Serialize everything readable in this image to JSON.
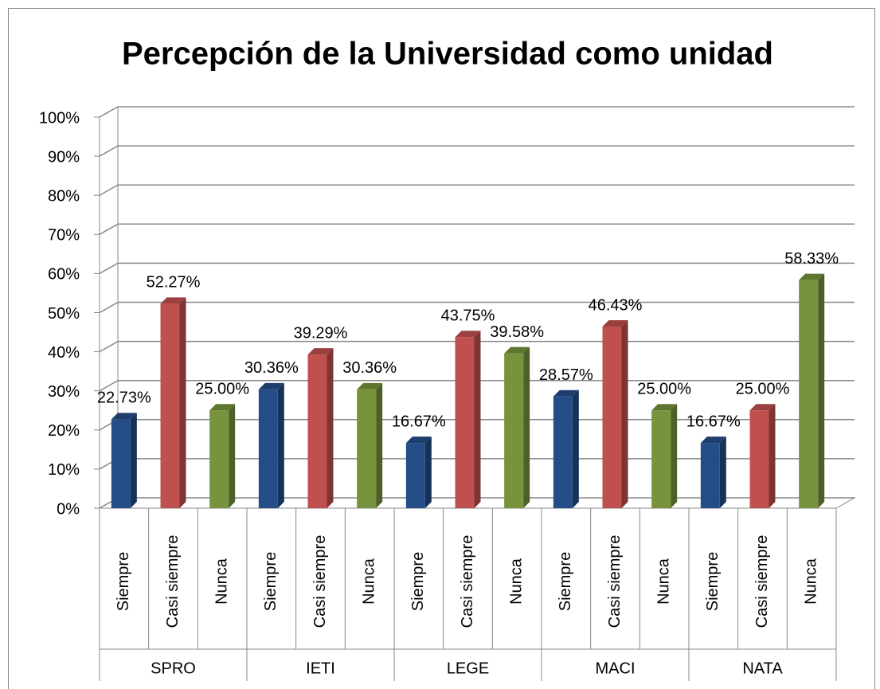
{
  "chart_data": {
    "type": "bar3d",
    "title": "Percepción de la Universidad como unidad",
    "categories": [
      "SPRO",
      "IETI",
      "LEGE",
      "MACI",
      "NATA"
    ],
    "series": [
      {
        "name": "Siempre",
        "color": "#244d87",
        "values": [
          22.73,
          30.36,
          16.67,
          28.57,
          16.67
        ],
        "value_labels": [
          "22.73%",
          "30.36%",
          "16.67%",
          "28.57%",
          "16.67%"
        ]
      },
      {
        "name": "Casi siempre",
        "color": "#c0504d",
        "values": [
          52.27,
          39.29,
          43.75,
          46.43,
          25.0
        ],
        "value_labels": [
          "52.27%",
          "39.29%",
          "43.75%",
          "46.43%",
          "25.00%"
        ]
      },
      {
        "name": "Nunca",
        "color": "#77933c",
        "values": [
          25.0,
          30.36,
          39.58,
          25.0,
          58.33
        ],
        "value_labels": [
          "25.00%",
          "30.36%",
          "39.58%",
          "25.00%",
          "58.33%"
        ]
      }
    ],
    "ylim": [
      0,
      100
    ],
    "yticks": [
      {
        "value": 0,
        "label": "0%"
      },
      {
        "value": 10,
        "label": "10%"
      },
      {
        "value": 20,
        "label": "20%"
      },
      {
        "value": 30,
        "label": "30%"
      },
      {
        "value": 40,
        "label": "40%"
      },
      {
        "value": 50,
        "label": "50%"
      },
      {
        "value": 60,
        "label": "60%"
      },
      {
        "value": 70,
        "label": "70%"
      },
      {
        "value": 80,
        "label": "80%"
      },
      {
        "value": 90,
        "label": "90%"
      },
      {
        "value": 100,
        "label": "100%"
      }
    ],
    "grid": true
  }
}
